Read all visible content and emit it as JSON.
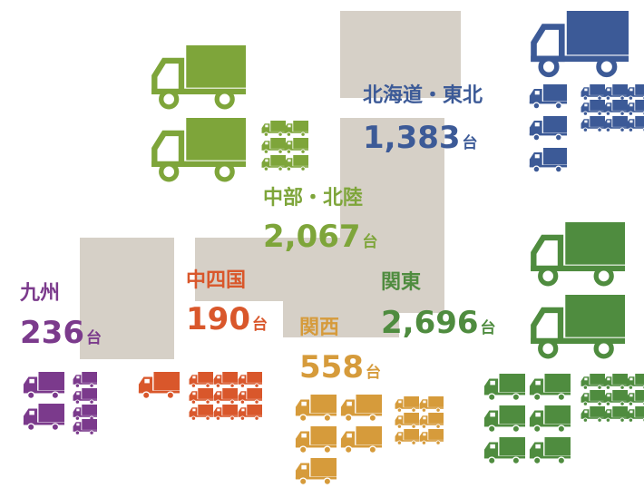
{
  "regions": [
    {
      "name": "北海道・東北",
      "count": "1,383",
      "unit": "台"
    },
    {
      "name": "中部・北陸",
      "count": "2,067",
      "unit": "台"
    },
    {
      "name": "九州",
      "count": "236",
      "unit": "台"
    },
    {
      "name": "中四国",
      "count": "190",
      "unit": "台"
    },
    {
      "name": "関西",
      "count": "558",
      "unit": "台"
    },
    {
      "name": "関東",
      "count": "2,696",
      "unit": "台"
    }
  ]
}
